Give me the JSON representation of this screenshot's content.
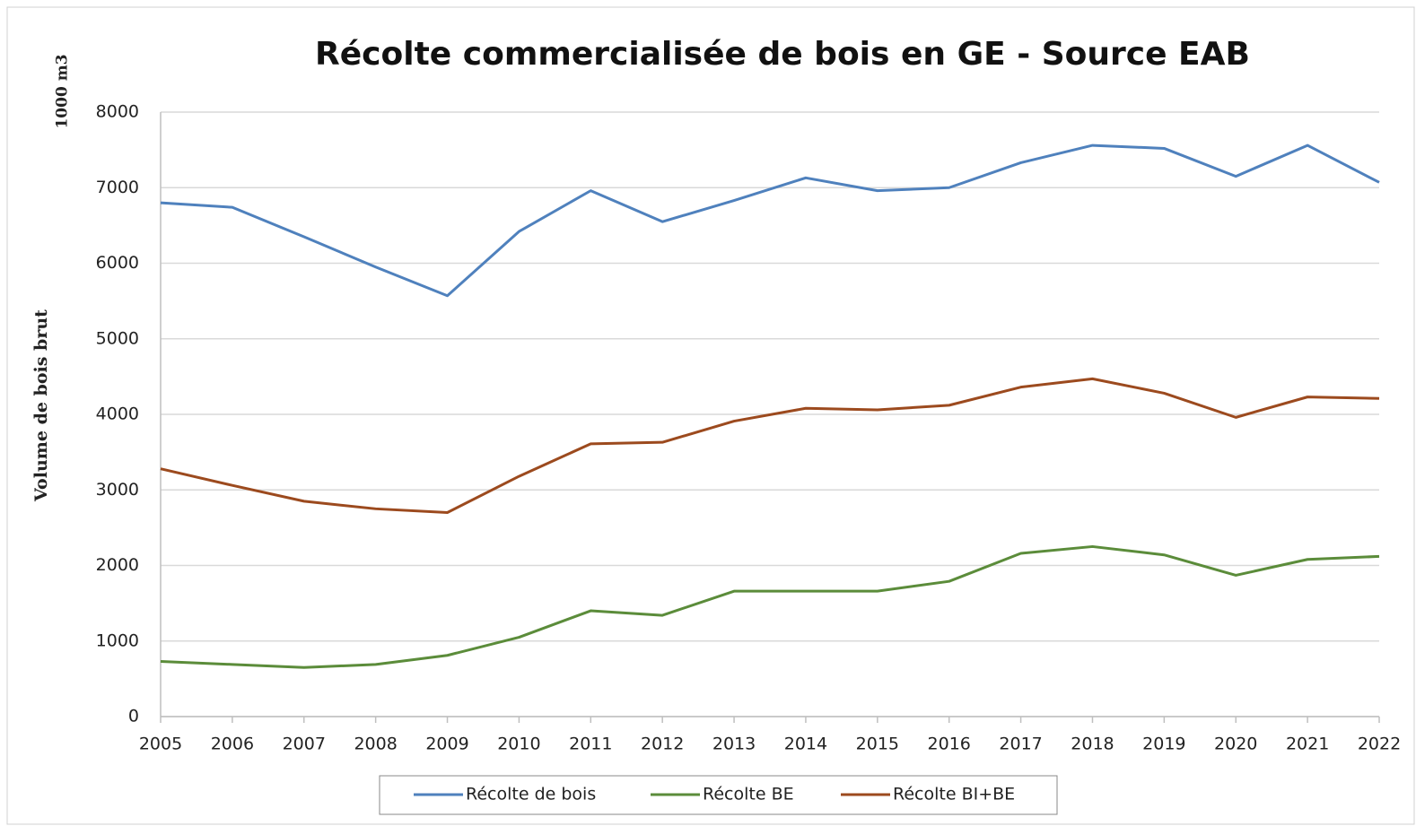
{
  "chart_data": {
    "type": "line",
    "title": "Récolte commercialisée de bois en GE - Source EAB",
    "y_label": "Volume de bois brut",
    "y_unit": "1000 m3",
    "x": [
      2005,
      2006,
      2007,
      2008,
      2009,
      2010,
      2011,
      2012,
      2013,
      2014,
      2015,
      2016,
      2017,
      2018,
      2019,
      2020,
      2021,
      2022
    ],
    "xlim": [
      2005,
      2022
    ],
    "xticks": [
      2005,
      2006,
      2007,
      2008,
      2009,
      2010,
      2011,
      2012,
      2013,
      2014,
      2015,
      2016,
      2017,
      2018,
      2019,
      2020,
      2021,
      2022
    ],
    "ylim": [
      0,
      8000
    ],
    "yticks": [
      0,
      1000,
      2000,
      3000,
      4000,
      5000,
      6000,
      7000,
      8000
    ],
    "grid": true,
    "legend": "bottom",
    "series": [
      {
        "name": "Récolte de bois",
        "color": "#4f81bd",
        "values": [
          6800,
          6740,
          6350,
          5950,
          5570,
          6420,
          6960,
          6550,
          6830,
          7130,
          6960,
          7000,
          7330,
          7560,
          7520,
          7150,
          7560,
          7070
        ]
      },
      {
        "name": "Récolte BE",
        "color": "#5b8c3a",
        "values": [
          730,
          690,
          650,
          690,
          810,
          1050,
          1400,
          1340,
          1660,
          1660,
          1660,
          1790,
          2160,
          2250,
          2140,
          1870,
          2080,
          2120
        ]
      },
      {
        "name": "Récolte BI+BE",
        "color": "#9c4a1e",
        "values": [
          3280,
          3060,
          2850,
          2750,
          2700,
          3180,
          3610,
          3630,
          3910,
          4080,
          4060,
          4120,
          4360,
          4470,
          4280,
          3960,
          4230,
          4210
        ]
      }
    ]
  }
}
